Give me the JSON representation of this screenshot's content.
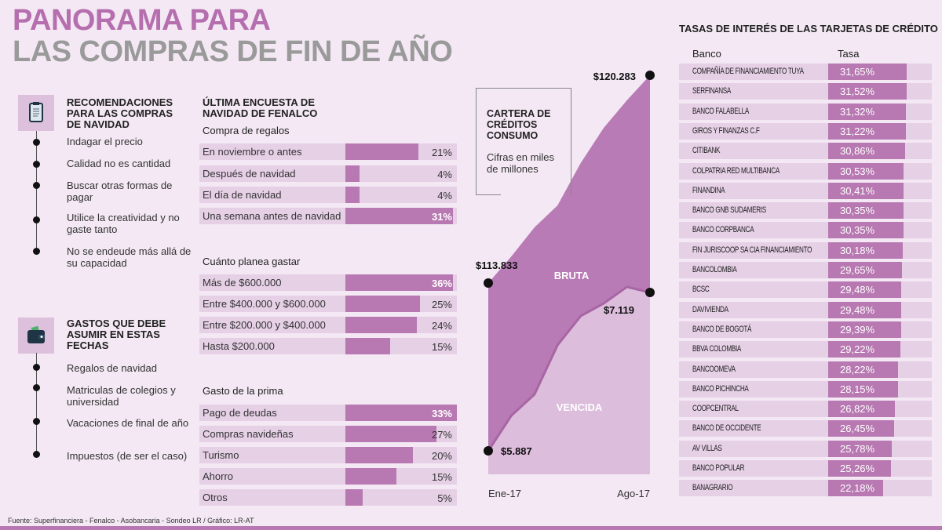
{
  "title": {
    "line1": "PANORAMA PARA",
    "line2": "LAS COMPRAS DE FIN DE AÑO"
  },
  "recomendaciones": {
    "heading": "RECOMENDACIONES PARA LAS COMPRAS DE NAVIDAD",
    "icon": "clipboard-icon",
    "items": [
      "Indagar el precio",
      "Calidad no es cantidad",
      "Buscar otras formas de pagar",
      "Utilice la creatividad y no gaste tanto",
      "No se endeude más allá de su capacidad"
    ]
  },
  "gastos": {
    "heading": "GASTOS QUE DEBE ASUMIR EN ESTAS FECHAS",
    "icon": "wallet-icon",
    "items": [
      "Regalos de navidad",
      "Matriculas de colegios y universidad",
      "Vacaciones de final de año",
      "Impuestos (de ser el caso)"
    ]
  },
  "encuesta": {
    "heading": "ÚLTIMA ENCUESTA DE NAVIDAD DE FENALCO"
  },
  "colors": {
    "accent": "#b878b2",
    "row_bg": "#e6d0e6",
    "background": "#f3e8f3",
    "bruta": "#b87bb5",
    "vencida": "#dcbddc",
    "title_gray": "#9a9a9a"
  },
  "chart_data": [
    {
      "type": "bar",
      "orientation": "horizontal",
      "title": "Compra de regalos",
      "categories": [
        "En noviembre o antes",
        "Después de navidad",
        "El día de navidad",
        "Una semana antes de navidad"
      ],
      "values": [
        21,
        4,
        4,
        31
      ],
      "labels": [
        "21%",
        "4%",
        "4%",
        "31%"
      ],
      "unit": "%"
    },
    {
      "type": "bar",
      "orientation": "horizontal",
      "title": "Cuánto planea gastar",
      "categories": [
        "Más de $600.000",
        "Entre $400.000 y $600.000",
        "Entre $200.000 y $400.000",
        "Hasta $200.000"
      ],
      "values": [
        36,
        25,
        24,
        15
      ],
      "labels": [
        "36%",
        "25%",
        "24%",
        "15%"
      ],
      "unit": "%"
    },
    {
      "type": "bar",
      "orientation": "horizontal",
      "title": "Gasto de la prima",
      "categories": [
        "Pago de deudas",
        "Compras navideñas",
        "Turismo",
        "Ahorro",
        "Otros"
      ],
      "values": [
        33,
        27,
        20,
        15,
        5
      ],
      "labels": [
        "33%",
        "27%",
        "20%",
        "15%",
        "5%"
      ],
      "unit": "%"
    },
    {
      "type": "area",
      "title": "CARTERA DE CRÉDITOS CONSUMO",
      "subtitle": "Cifras en miles de millones",
      "x_tick_labels": [
        "Ene-17",
        "Ago-17"
      ],
      "x": [
        "Ene-17",
        "Feb-17",
        "Mar-17",
        "Abr-17",
        "May-17",
        "Jun-17",
        "Jul-17",
        "Ago-17"
      ],
      "series": [
        {
          "name": "BRUTA",
          "values": [
            113833,
            114661,
            115561,
            116243,
            117557,
            118652,
            119504,
            120283
          ],
          "end_labels": [
            "$113.833",
            "$120.283"
          ]
        },
        {
          "name": "VENCIDA",
          "values": [
            5887,
            6161,
            6326,
            6710,
            6936,
            7034,
            7162,
            7119
          ],
          "end_labels": [
            "$5.887",
            "$7.119"
          ]
        }
      ]
    },
    {
      "type": "table",
      "title": "TASAS DE INTERÉS DE LAS TARJETAS DE CRÉDITO",
      "columns": [
        "Banco",
        "Tasa"
      ],
      "rows": [
        [
          "COMPAÑÍA DE FINANCIAMIENTO TUYA",
          "31,65%"
        ],
        [
          "SERFINANSA",
          "31,52%"
        ],
        [
          "BANCO FALABELLA",
          "31,32%"
        ],
        [
          "GIROS Y FINANZAS   C.F",
          "31,22%"
        ],
        [
          "CITIBANK",
          "30,86%"
        ],
        [
          "COLPATRIA RED MULTIBANCA",
          "30,53%"
        ],
        [
          "FINANDINA",
          "30,41%"
        ],
        [
          "BANCO GNB SUDAMERIS",
          "30,35%"
        ],
        [
          "BANCO CORPBANCA",
          "30,35%"
        ],
        [
          "FIN JURISCOOP SA CIA FINANCIAMIENTO",
          "30,18%"
        ],
        [
          "BANCOLOMBIA",
          "29,65%"
        ],
        [
          "BCSC",
          "29,48%"
        ],
        [
          "DAVIVIENDA",
          "29,48%"
        ],
        [
          "BANCO DE BOGOTÁ",
          "29,39%"
        ],
        [
          "BBVA COLOMBIA",
          "29,22%"
        ],
        [
          "BANCOOMEVA",
          "28,22%"
        ],
        [
          "BANCO PICHINCHA",
          "28,15%"
        ],
        [
          "COOPCENTRAL",
          "26,82%"
        ],
        [
          "BANCO DE OCCIDENTE",
          "26,45%"
        ],
        [
          "AV VILLAS",
          "25,78%"
        ],
        [
          "BANCO POPULAR",
          "25,26%"
        ],
        [
          "BANAGRARIO",
          "22,18%"
        ]
      ],
      "values": [
        31.65,
        31.52,
        31.32,
        31.22,
        30.86,
        30.53,
        30.41,
        30.35,
        30.35,
        30.18,
        29.65,
        29.48,
        29.48,
        29.39,
        29.22,
        28.22,
        28.15,
        26.82,
        26.45,
        25.78,
        25.26,
        22.18
      ]
    }
  ],
  "footer": "Fuente: Superfinanciera - Fenalco - Asobancaria -  Sondeo LR / Gráfico: LR-AT"
}
